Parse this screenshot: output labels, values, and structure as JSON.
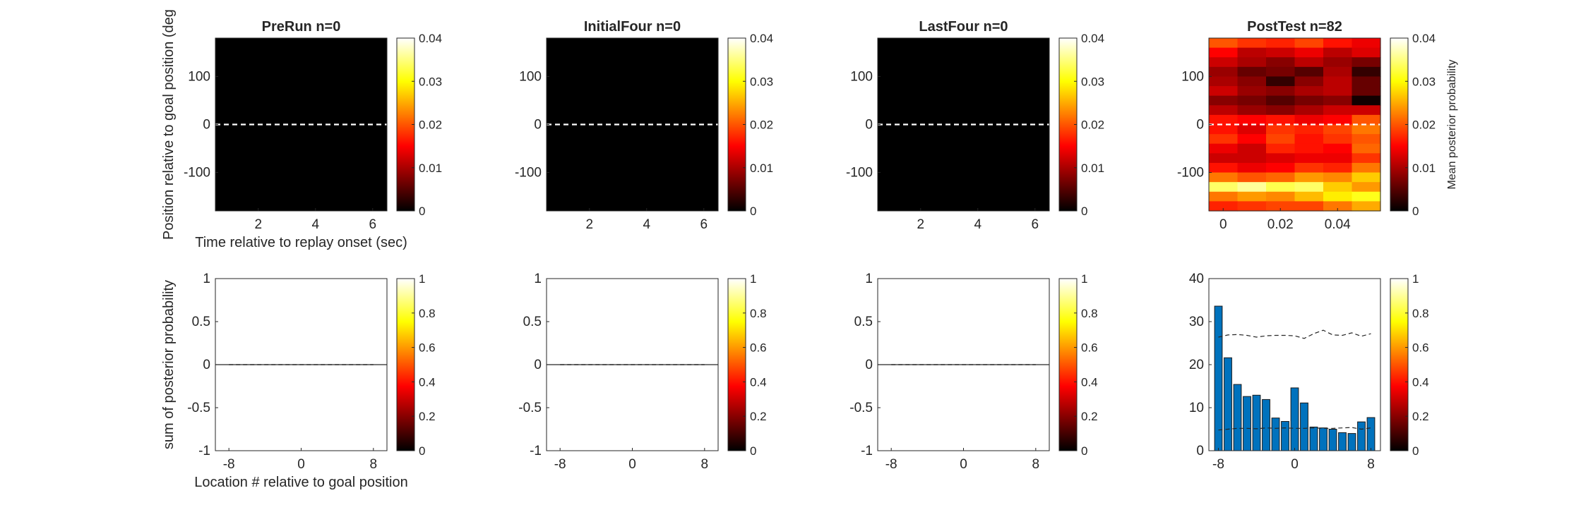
{
  "chart_data": [
    {
      "type": "heatmap",
      "panel": "heatmap",
      "title": "PreRun n=0",
      "xlabel": "Time relative to replay onset (sec)",
      "ylabel": "Position relative to goal position (deg",
      "xlim": [
        0.5,
        6.5
      ],
      "ylim": [
        -180,
        180
      ],
      "xticks": [
        2,
        4,
        6
      ],
      "xtick_labels": [
        "2",
        "4",
        "6"
      ],
      "yticks": [
        100,
        0,
        -100
      ],
      "ytick_labels": [
        "100",
        "0",
        "-100"
      ],
      "values": "all zero (uniform black)",
      "reference_line": {
        "y": 0,
        "style": "dashed",
        "color": "#ffffff"
      },
      "colorbar": {
        "min": 0,
        "max": 0.04,
        "ticks": [
          "0.04",
          "0.03",
          "0.02",
          "0.01",
          "0"
        ],
        "label": ""
      }
    },
    {
      "type": "heatmap",
      "panel": "heatmap",
      "title": "InitialFour n=0",
      "xlim": [
        0.5,
        6.5
      ],
      "ylim": [
        -180,
        180
      ],
      "xticks": [
        2,
        4,
        6
      ],
      "xtick_labels": [
        "2",
        "4",
        "6"
      ],
      "yticks": [
        100,
        0,
        -100
      ],
      "ytick_labels": [
        "100",
        "0",
        "-100"
      ],
      "values": "all zero (uniform black)",
      "reference_line": {
        "y": 0,
        "style": "dashed",
        "color": "#ffffff"
      },
      "colorbar": {
        "min": 0,
        "max": 0.04,
        "ticks": [
          "0.04",
          "0.03",
          "0.02",
          "0.01",
          "0"
        ],
        "label": ""
      }
    },
    {
      "type": "heatmap",
      "panel": "heatmap",
      "title": "LastFour n=0",
      "xlim": [
        0.5,
        6.5
      ],
      "ylim": [
        -180,
        180
      ],
      "xticks": [
        2,
        4,
        6
      ],
      "xtick_labels": [
        "2",
        "4",
        "6"
      ],
      "yticks": [
        100,
        0,
        -100
      ],
      "ytick_labels": [
        "100",
        "0",
        "-100"
      ],
      "values": "all zero (uniform black)",
      "reference_line": {
        "y": 0,
        "style": "dashed",
        "color": "#ffffff"
      },
      "colorbar": {
        "min": 0,
        "max": 0.04,
        "ticks": [
          "0.04",
          "0.03",
          "0.02",
          "0.01",
          "0"
        ],
        "label": ""
      }
    },
    {
      "type": "heatmap",
      "panel": "heatmap",
      "title": "PostTest n=82",
      "xlim": [
        -0.005,
        0.055
      ],
      "ylim": [
        -180,
        180
      ],
      "xticks": [
        0,
        0.02,
        0.04
      ],
      "xtick_labels": [
        "0",
        "0.02",
        "0.04"
      ],
      "yticks": [
        100,
        0,
        -100
      ],
      "ytick_labels": [
        "100",
        "0",
        "-100"
      ],
      "x": [
        0,
        0.01,
        0.02,
        0.03,
        0.04,
        0.05
      ],
      "y_bins": [
        170,
        150,
        130,
        110,
        90,
        70,
        50,
        30,
        10,
        -10,
        -30,
        -50,
        -70,
        -90,
        -110,
        -130,
        -150,
        -170
      ],
      "values": [
        [
          0.02,
          0.018,
          0.017,
          0.019,
          0.016,
          0.014
        ],
        [
          0.015,
          0.011,
          0.012,
          0.014,
          0.011,
          0.013
        ],
        [
          0.012,
          0.01,
          0.008,
          0.011,
          0.009,
          0.007
        ],
        [
          0.009,
          0.006,
          0.007,
          0.005,
          0.01,
          0.003
        ],
        [
          0.01,
          0.008,
          0.003,
          0.008,
          0.011,
          0.006
        ],
        [
          0.012,
          0.009,
          0.008,
          0.01,
          0.011,
          0.006
        ],
        [
          0.008,
          0.007,
          0.005,
          0.007,
          0.008,
          0.001
        ],
        [
          0.011,
          0.009,
          0.008,
          0.01,
          0.012,
          0.012
        ],
        [
          0.016,
          0.015,
          0.016,
          0.014,
          0.015,
          0.02
        ],
        [
          0.016,
          0.013,
          0.018,
          0.017,
          0.019,
          0.022
        ],
        [
          0.018,
          0.015,
          0.019,
          0.016,
          0.018,
          0.02
        ],
        [
          0.014,
          0.012,
          0.017,
          0.016,
          0.015,
          0.021
        ],
        [
          0.012,
          0.012,
          0.013,
          0.014,
          0.014,
          0.018
        ],
        [
          0.016,
          0.014,
          0.015,
          0.018,
          0.017,
          0.022
        ],
        [
          0.022,
          0.02,
          0.021,
          0.024,
          0.023,
          0.027
        ],
        [
          0.034,
          0.036,
          0.033,
          0.034,
          0.027,
          0.024
        ],
        [
          0.022,
          0.024,
          0.023,
          0.026,
          0.029,
          0.031
        ],
        [
          0.017,
          0.018,
          0.019,
          0.019,
          0.022,
          0.025
        ]
      ],
      "reference_line": {
        "y": 0,
        "style": "dashed",
        "color": "#ffffff"
      },
      "colorbar": {
        "min": 0,
        "max": 0.04,
        "ticks": [
          "0.04",
          "0.03",
          "0.02",
          "0.01",
          "0"
        ],
        "label": "Mean posterior probability"
      }
    },
    {
      "type": "bar",
      "panel": "bar",
      "title": "",
      "xlabel": "Location # relative to goal position",
      "ylabel": "sum of posterior probability",
      "xlim": [
        -9.5,
        9.5
      ],
      "ylim": [
        -1,
        1
      ],
      "xticks": [
        -8,
        0,
        8
      ],
      "xtick_labels": [
        "-8",
        "0",
        "8"
      ],
      "yticks": [
        1,
        0.5,
        0,
        -0.5,
        -1
      ],
      "ytick_labels": [
        "1",
        "0.5",
        "0",
        "-0.5",
        "-1"
      ],
      "x": [
        -8,
        -7,
        -6,
        -5,
        -4,
        -3,
        -2,
        -1,
        0,
        1,
        2,
        3,
        4,
        5,
        6,
        7,
        8
      ],
      "values": [
        0,
        0,
        0,
        0,
        0,
        0,
        0,
        0,
        0,
        0,
        0,
        0,
        0,
        0,
        0,
        0,
        0
      ],
      "upper_dashed": [
        0,
        0,
        0,
        0,
        0,
        0,
        0,
        0,
        0,
        0,
        0,
        0,
        0,
        0,
        0,
        0,
        0
      ],
      "lower_dashed": [
        0,
        0,
        0,
        0,
        0,
        0,
        0,
        0,
        0,
        0,
        0,
        0,
        0,
        0,
        0,
        0,
        0
      ],
      "colorbar": {
        "min": 0,
        "max": 1,
        "ticks": [
          "1",
          "0.8",
          "0.6",
          "0.4",
          "0.2",
          "0"
        ]
      }
    },
    {
      "type": "bar",
      "panel": "bar",
      "title": "",
      "xlim": [
        -9.5,
        9.5
      ],
      "ylim": [
        -1,
        1
      ],
      "xticks": [
        -8,
        0,
        8
      ],
      "xtick_labels": [
        "-8",
        "0",
        "8"
      ],
      "yticks": [
        1,
        0.5,
        0,
        -0.5,
        -1
      ],
      "ytick_labels": [
        "1",
        "0.5",
        "0",
        "-0.5",
        "-1"
      ],
      "x": [
        -8,
        -7,
        -6,
        -5,
        -4,
        -3,
        -2,
        -1,
        0,
        1,
        2,
        3,
        4,
        5,
        6,
        7,
        8
      ],
      "values": [
        0,
        0,
        0,
        0,
        0,
        0,
        0,
        0,
        0,
        0,
        0,
        0,
        0,
        0,
        0,
        0,
        0
      ],
      "upper_dashed": [
        0,
        0,
        0,
        0,
        0,
        0,
        0,
        0,
        0,
        0,
        0,
        0,
        0,
        0,
        0,
        0,
        0
      ],
      "lower_dashed": [
        0,
        0,
        0,
        0,
        0,
        0,
        0,
        0,
        0,
        0,
        0,
        0,
        0,
        0,
        0,
        0,
        0
      ],
      "colorbar": {
        "min": 0,
        "max": 1,
        "ticks": [
          "1",
          "0.8",
          "0.6",
          "0.4",
          "0.2",
          "0"
        ]
      }
    },
    {
      "type": "bar",
      "panel": "bar",
      "title": "",
      "xlim": [
        -9.5,
        9.5
      ],
      "ylim": [
        -1,
        1
      ],
      "xticks": [
        -8,
        0,
        8
      ],
      "xtick_labels": [
        "-8",
        "0",
        "8"
      ],
      "yticks": [
        1,
        0.5,
        0,
        -0.5,
        -1
      ],
      "ytick_labels": [
        "1",
        "0.5",
        "0",
        "-0.5",
        "-1"
      ],
      "x": [
        -8,
        -7,
        -6,
        -5,
        -4,
        -3,
        -2,
        -1,
        0,
        1,
        2,
        3,
        4,
        5,
        6,
        7,
        8
      ],
      "values": [
        0,
        0,
        0,
        0,
        0,
        0,
        0,
        0,
        0,
        0,
        0,
        0,
        0,
        0,
        0,
        0,
        0
      ],
      "upper_dashed": [
        0,
        0,
        0,
        0,
        0,
        0,
        0,
        0,
        0,
        0,
        0,
        0,
        0,
        0,
        0,
        0,
        0
      ],
      "lower_dashed": [
        0,
        0,
        0,
        0,
        0,
        0,
        0,
        0,
        0,
        0,
        0,
        0,
        0,
        0,
        0,
        0,
        0
      ],
      "colorbar": {
        "min": 0,
        "max": 1,
        "ticks": [
          "1",
          "0.8",
          "0.6",
          "0.4",
          "0.2",
          "0"
        ]
      }
    },
    {
      "type": "bar",
      "panel": "bar",
      "title": "",
      "xlim": [
        -9,
        9
      ],
      "ylim": [
        0,
        40
      ],
      "xticks": [
        -8,
        0,
        8
      ],
      "xtick_labels": [
        "-8",
        "0",
        "8"
      ],
      "yticks": [
        40,
        30,
        20,
        10,
        0
      ],
      "ytick_labels": [
        "40",
        "30",
        "20",
        "10",
        "0"
      ],
      "x": [
        -8,
        -7,
        -6,
        -5,
        -4,
        -3,
        -2,
        -1,
        0,
        1,
        2,
        3,
        4,
        5,
        6,
        7,
        8
      ],
      "values": [
        33.6,
        21.6,
        15.4,
        12.6,
        12.9,
        11.9,
        7.6,
        6.8,
        14.6,
        11.1,
        5.5,
        5.3,
        5.0,
        4.2,
        4.0,
        6.7,
        7.7
      ],
      "bar_color": "#0072BD",
      "upper_dashed": [
        26.4,
        26.9,
        27.0,
        26.8,
        26.4,
        26.7,
        26.8,
        26.8,
        26.7,
        26.1,
        27.2,
        28.0,
        26.9,
        26.8,
        27.4,
        26.6,
        27.2
      ],
      "lower_dashed": [
        4.8,
        5.0,
        5.2,
        5.2,
        5.1,
        5.3,
        5.2,
        5.3,
        5.2,
        5.2,
        5.3,
        5.2,
        5.2,
        5.3,
        5.4,
        5.0,
        5.3
      ],
      "colorbar": {
        "min": 0,
        "max": 1,
        "ticks": [
          "1",
          "0.8",
          "0.6",
          "0.4",
          "0.2",
          "0"
        ]
      }
    }
  ]
}
